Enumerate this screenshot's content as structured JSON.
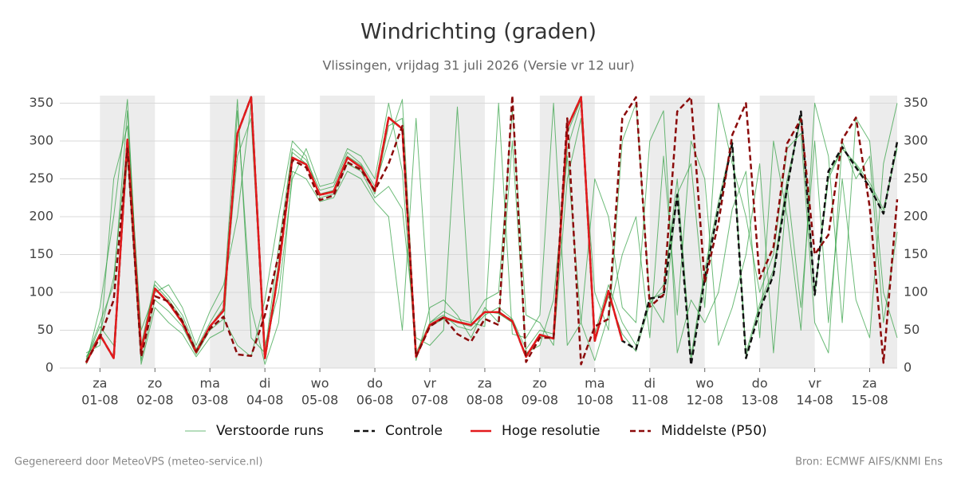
{
  "chart_data": {
    "type": "line",
    "title": "Windrichting (graden)",
    "subtitle": "Vlissingen, vrijdag 31 juli 2026 (Versie vr 12 uur)",
    "footer_left": "Gegenereerd door MeteoVPS (meteo-service.nl)",
    "footer_right": "Bron: ECMWF AIFS/KNMI Ens",
    "x": [
      0.75,
      1,
      1.25,
      1.5,
      1.75,
      2,
      2.25,
      2.5,
      2.75,
      3,
      3.25,
      3.5,
      3.75,
      4,
      4.25,
      4.5,
      4.75,
      5,
      5.25,
      5.5,
      5.75,
      6,
      6.25,
      6.5,
      6.75,
      7,
      7.25,
      7.5,
      7.75,
      8,
      8.25,
      8.5,
      8.75,
      9,
      9.25,
      9.5,
      9.75,
      10,
      10.25,
      10.5,
      10.75,
      11,
      11.25,
      11.5,
      11.75,
      12,
      12.25,
      12.5,
      12.75,
      13,
      13.25,
      13.5,
      13.75,
      14,
      14.25,
      14.5,
      14.75,
      15,
      15.25,
      15.5
    ],
    "xlim": [
      0.27,
      15.5
    ],
    "xticks": [
      {
        "value": 1,
        "label": "01-08",
        "weekday": "za"
      },
      {
        "value": 2,
        "label": "02-08",
        "weekday": "zo"
      },
      {
        "value": 3,
        "label": "03-08",
        "weekday": "ma"
      },
      {
        "value": 4,
        "label": "04-08",
        "weekday": "di"
      },
      {
        "value": 5,
        "label": "05-08",
        "weekday": "wo"
      },
      {
        "value": 6,
        "label": "06-08",
        "weekday": "do"
      },
      {
        "value": 7,
        "label": "07-08",
        "weekday": "vr"
      },
      {
        "value": 8,
        "label": "08-08",
        "weekday": "za"
      },
      {
        "value": 9,
        "label": "09-08",
        "weekday": "zo"
      },
      {
        "value": 10,
        "label": "10-08",
        "weekday": "ma"
      },
      {
        "value": 11,
        "label": "11-08",
        "weekday": "di"
      },
      {
        "value": 12,
        "label": "12-08",
        "weekday": "wo"
      },
      {
        "value": 13,
        "label": "13-08",
        "weekday": "do"
      },
      {
        "value": 14,
        "label": "14-08",
        "weekday": "vr"
      },
      {
        "value": 15,
        "label": "15-08",
        "weekday": "za"
      }
    ],
    "shaded_days": [
      1,
      3,
      5,
      7,
      9,
      11,
      13,
      15
    ],
    "ylim": [
      0,
      360
    ],
    "yticks": [
      0,
      50,
      100,
      150,
      200,
      250,
      300,
      350
    ],
    "grid": true,
    "series": [
      {
        "name": "Verstoorde runs",
        "color": "#2e9e3e",
        "width": 1,
        "dash": "none",
        "opacity": 0.7,
        "members": [
          [
            12,
            60,
            110,
            340,
            30,
            115,
            95,
            70,
            25,
            60,
            90,
            355,
            40,
            20,
            160,
            290,
            275,
            235,
            240,
            285,
            270,
            240,
            300,
            355,
            20,
            60,
            70,
            55,
            50,
            70,
            80,
            65,
            25,
            50,
            45,
            290,
            350,
            45,
            110,
            60,
            30,
            90,
            100,
            250,
            15,
            130,
            220,
            300,
            20,
            85,
            130,
            250,
            330,
            100,
            250,
            290,
            270,
            245,
            210,
            290
          ],
          [
            5,
            80,
            200,
            355,
            10,
            90,
            75,
            55,
            18,
            50,
            65,
            30,
            15,
            90,
            200,
            300,
            280,
            225,
            230,
            270,
            260,
            225,
            240,
            210,
            40,
            30,
            50,
            345,
            60,
            55,
            350,
            45,
            40,
            70,
            350,
            30,
            60,
            250,
            200,
            80,
            60,
            300,
            340,
            20,
            90,
            60,
            100,
            210,
            260,
            40,
            300,
            200,
            50,
            350,
            280,
            60,
            330,
            300,
            100,
            40
          ],
          [
            20,
            30,
            250,
            320,
            50,
            100,
            110,
            80,
            30,
            75,
            110,
            200,
            350,
            30,
            100,
            250,
            290,
            240,
            245,
            290,
            280,
            250,
            350,
            260,
            10,
            80,
            90,
            70,
            40,
            80,
            60,
            300,
            20,
            30,
            90,
            280,
            60,
            10,
            70,
            150,
            200,
            40,
            280,
            70,
            300,
            250,
            30,
            80,
            150,
            270,
            20,
            240,
            80,
            300,
            60,
            250,
            90,
            40,
            270,
            350
          ],
          [
            10,
            55,
            30,
            280,
            5,
            80,
            60,
            45,
            15,
            40,
            50,
            340,
            80,
            5,
            60,
            260,
            250,
            220,
            225,
            260,
            250,
            220,
            200,
            50,
            330,
            60,
            75,
            65,
            60,
            90,
            100,
            340,
            70,
            60,
            30,
            250,
            330,
            100,
            50,
            300,
            350,
            90,
            60,
            230,
            270,
            80,
            350,
            270,
            200,
            100,
            150,
            290,
            310,
            60,
            20,
            300,
            250,
            280,
            60,
            180
          ],
          [
            15,
            45,
            120,
            300,
            20,
            110,
            90,
            65,
            20,
            55,
            80,
            280,
            330,
            15,
            140,
            285,
            270,
            230,
            235,
            280,
            268,
            230,
            320,
            330,
            15,
            55,
            65,
            60,
            55,
            75,
            72,
            60,
            18,
            42,
            40,
            310,
            355,
            40,
            95,
            45,
            22,
            85,
            110,
            230,
            8,
            120,
            210,
            298,
            15,
            80,
            125,
            240,
            335,
            95,
            255,
            290,
            268,
            240,
            205,
            295
          ]
        ]
      },
      {
        "name": "Controle",
        "color": "#111111",
        "width": 2.5,
        "dash": "7 4",
        "opacity": 1,
        "values": [
          7,
          44,
          13,
          302,
          23,
          105,
          86,
          60,
          21,
          55,
          76,
          310,
          358,
          13,
          129,
          278,
          269,
          229,
          233,
          278,
          265,
          234,
          331,
          316,
          15,
          57,
          67,
          61,
          57,
          74,
          74,
          62,
          15,
          44,
          39,
          318,
          358,
          36,
          102,
          36,
          25,
          92,
          95,
          229,
          4,
          118,
          211,
          297,
          13,
          76,
          123,
          239,
          339,
          97,
          260,
          292,
          265,
          239,
          204,
          299
        ]
      },
      {
        "name": "Hoge resolutie",
        "color": "#e31a1c",
        "width": 2.5,
        "dash": "none",
        "opacity": 1,
        "values": [
          7,
          44,
          13,
          302,
          23,
          105,
          86,
          60,
          21,
          55,
          76,
          310,
          358,
          13,
          129,
          278,
          269,
          229,
          233,
          278,
          265,
          234,
          331,
          316,
          15,
          57,
          67,
          61,
          57,
          74,
          74,
          62,
          15,
          44,
          39,
          318,
          358,
          36,
          102,
          36,
          null,
          null,
          null,
          null,
          null,
          null,
          null,
          null,
          null,
          null,
          null,
          null,
          null,
          null,
          null,
          null,
          null,
          null,
          null,
          null
        ]
      },
      {
        "name": "Middelste (P50)",
        "color": "#8b0a0a",
        "width": 2.5,
        "dash": "7 4",
        "opacity": 1,
        "values": [
          8,
          40,
          90,
          290,
          15,
          95,
          88,
          62,
          22,
          52,
          68,
          18,
          16,
          70,
          150,
          275,
          265,
          222,
          228,
          272,
          262,
          235,
          270,
          320,
          15,
          55,
          67,
          45,
          35,
          65,
          57,
          360,
          8,
          40,
          40,
          330,
          5,
          55,
          65,
          330,
          358,
          81,
          97,
          339,
          358,
          113,
          192,
          308,
          350,
          118,
          160,
          297,
          329,
          150,
          176,
          302,
          331,
          213,
          7,
          223
        ]
      }
    ]
  }
}
